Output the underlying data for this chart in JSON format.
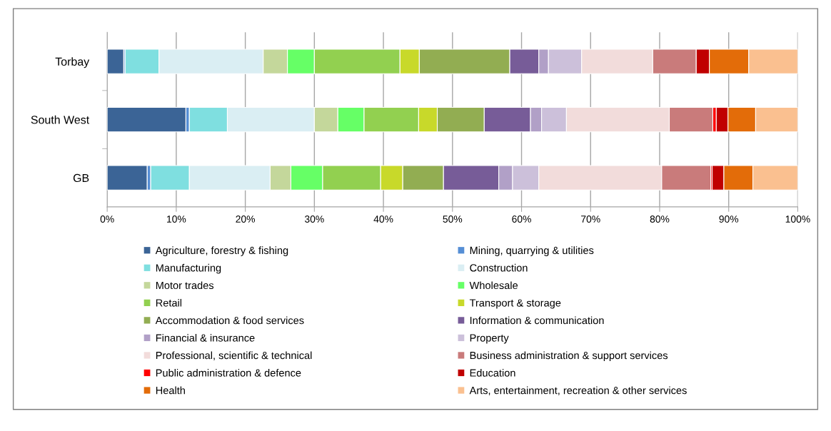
{
  "chart_data": {
    "type": "bar",
    "orientation": "horizontal",
    "stacked": true,
    "categories": [
      "Torbay",
      "South West",
      "GB"
    ],
    "xlim": [
      0,
      100
    ],
    "xticks": [
      {
        "value": 0,
        "label": "0%"
      },
      {
        "value": 10,
        "label": "10%"
      },
      {
        "value": 20,
        "label": "20%"
      },
      {
        "value": 30,
        "label": "30%"
      },
      {
        "value": 40,
        "label": "40%"
      },
      {
        "value": 50,
        "label": "50%"
      },
      {
        "value": 60,
        "label": "60%"
      },
      {
        "value": 70,
        "label": "70%"
      },
      {
        "value": 80,
        "label": "80%"
      },
      {
        "value": 90,
        "label": "90%"
      },
      {
        "value": 100,
        "label": "100%"
      }
    ],
    "grid": "x",
    "legend": "bottom",
    "series": [
      {
        "name": "Agriculture, forestry & fishing",
        "color": "#3b6496",
        "values": [
          2.4,
          11.4,
          5.8
        ]
      },
      {
        "name": "Mining, quarrying & utilities",
        "color": "#558ed5",
        "values": [
          0.2,
          0.5,
          0.5
        ]
      },
      {
        "name": "Manufacturing",
        "color": "#7fdfe0",
        "values": [
          4.9,
          5.5,
          5.6
        ]
      },
      {
        "name": "Construction",
        "color": "#daeef3",
        "values": [
          15.1,
          12.6,
          11.7
        ]
      },
      {
        "name": "Motor trades",
        "color": "#c4d79b",
        "values": [
          3.5,
          3.4,
          3.0
        ]
      },
      {
        "name": "Wholesale",
        "color": "#66ff66",
        "values": [
          3.9,
          3.8,
          4.6
        ]
      },
      {
        "name": "Retail",
        "color": "#92d050",
        "values": [
          12.4,
          7.9,
          8.4
        ]
      },
      {
        "name": "Transport & storage",
        "color": "#c8d92a",
        "values": [
          2.8,
          2.7,
          3.2
        ]
      },
      {
        "name": "Accommodation & food services",
        "color": "#92ad52",
        "values": [
          13.1,
          6.8,
          5.9
        ]
      },
      {
        "name": "Information & communication",
        "color": "#775c98",
        "values": [
          4.2,
          6.7,
          8.0
        ]
      },
      {
        "name": "Financial & insurance",
        "color": "#b1a0c7",
        "values": [
          1.4,
          1.6,
          2.0
        ]
      },
      {
        "name": "Property",
        "color": "#ccc0da",
        "values": [
          4.8,
          3.6,
          3.8
        ]
      },
      {
        "name": "Professional, scientific & technical",
        "color": "#f2dcdb",
        "values": [
          10.3,
          14.9,
          17.8
        ]
      },
      {
        "name": "Business administration & support services",
        "color": "#c97b7b",
        "values": [
          6.3,
          6.3,
          7.1
        ]
      },
      {
        "name": "Public administration & defence",
        "color": "#ff0000",
        "values": [
          null,
          0.5,
          0.2
        ]
      },
      {
        "name": "Education",
        "color": "#c00000",
        "values": [
          1.9,
          1.7,
          1.7
        ]
      },
      {
        "name": "Health",
        "color": "#e36c09",
        "values": [
          5.7,
          4.0,
          4.2
        ]
      },
      {
        "name": "Arts, entertainment, recreation & other services",
        "color": "#fac090",
        "values": [
          7.1,
          6.1,
          6.5
        ]
      }
    ]
  }
}
